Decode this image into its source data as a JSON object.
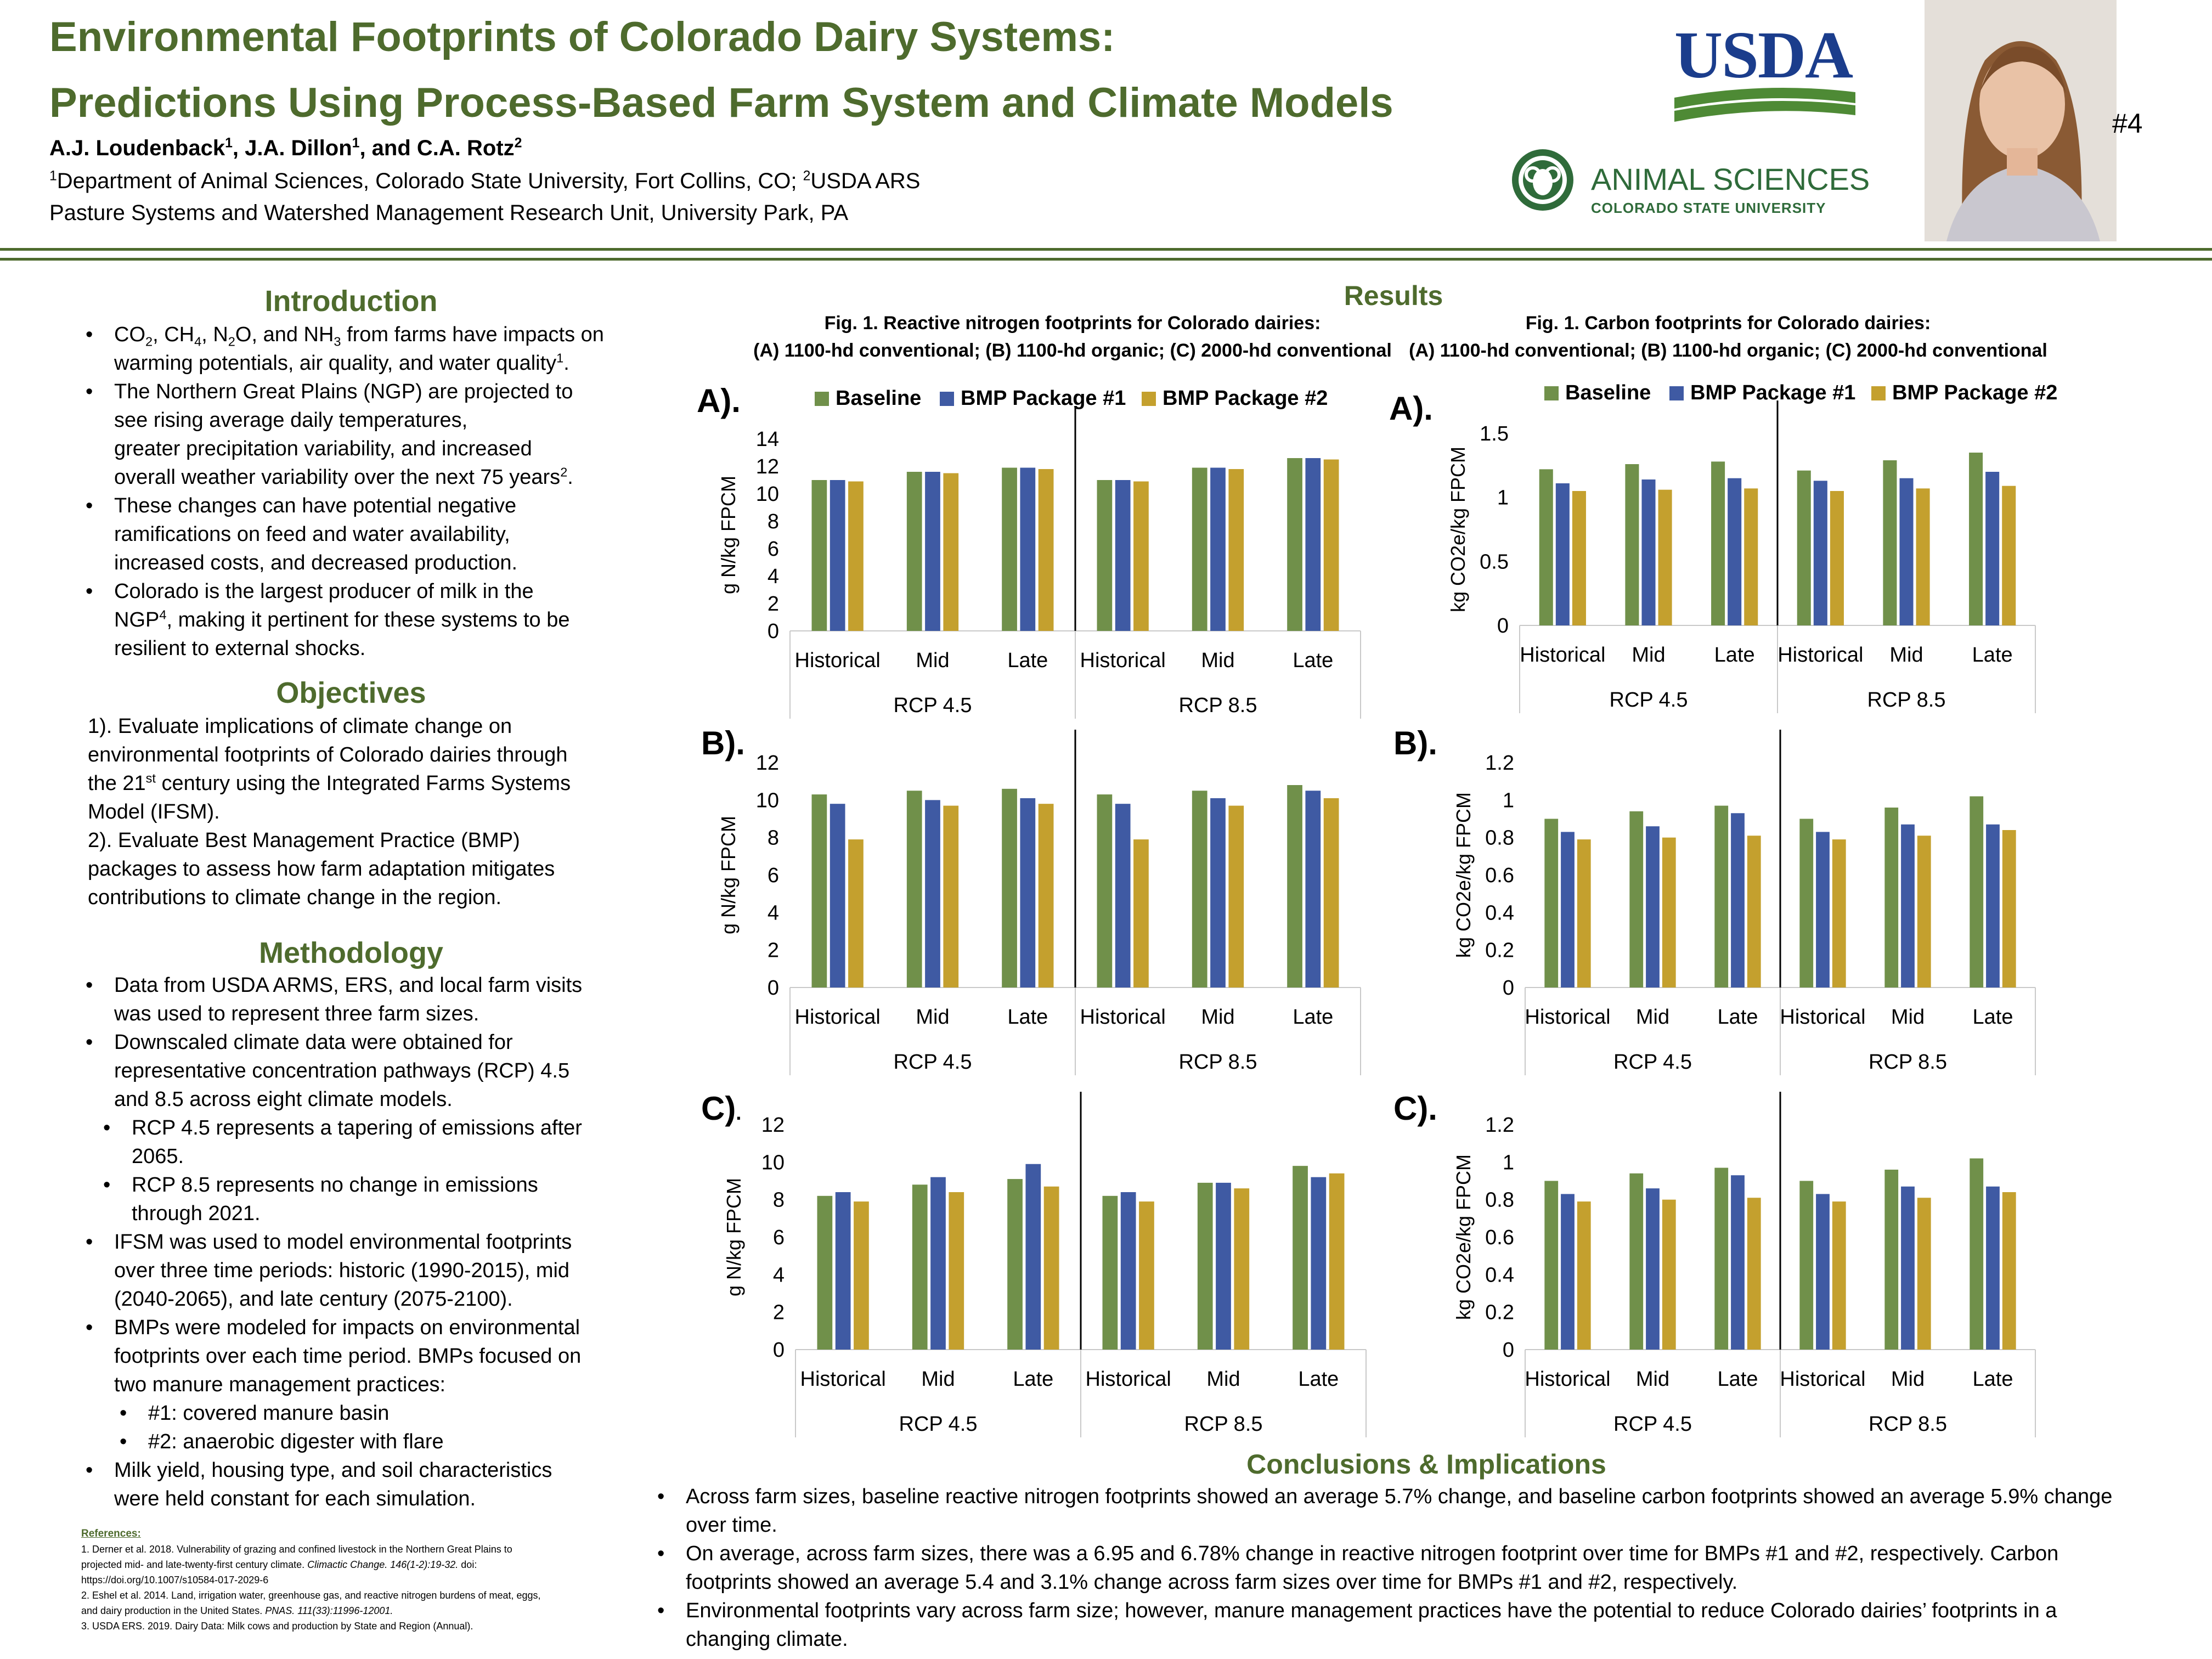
{
  "header": {
    "title_line1": "Environmental Footprints of Colorado Dairy Systems:",
    "title_line2": "Predictions Using Process-Based Farm System and Climate Models",
    "authors": {
      "a1": "A.J. Loudenback",
      "s1": "1",
      "a2": ", J.A. Dillon",
      "s2": "1",
      "a3": ", and C.A. Rotz",
      "s3": "2"
    },
    "affil1": {
      "s1": "1",
      "t1": "Department of Animal Sciences, Colorado State University, Fort Collins, CO; ",
      "s2": "2",
      "t2": "USDA ARS"
    },
    "affil2": "Pasture Systems and Watershed Management Research Unit, University Park, PA",
    "poster_number": "#4",
    "usda_logo_text": "USDA",
    "csu_line1": "ANIMAL SCIENCES",
    "csu_line2": "COLORADO STATE UNIVERSITY"
  },
  "intro": {
    "heading": "Introduction",
    "b1": {
      "a": "CO",
      "s1": "2",
      "b": ", CH",
      "s2": "4",
      "c": ", N",
      "s3": "2",
      "d": "O, and NH",
      "s4": "3",
      "e": " from farms have impacts on",
      "f": "warming potentials, air quality, and water quality",
      "s5": "1",
      "g": "."
    },
    "b2": {
      "l1": "The Northern Great Plains (NGP) are projected to",
      "l2": "see rising average daily temperatures,",
      "l3": "greater precipitation variability, and increased",
      "l4": "overall weather variability over the next 75 years",
      "s": "2",
      "e": "."
    },
    "b3": {
      "l1": "These changes can have potential negative",
      "l2": "ramifications on feed and water availability,",
      "l3": "increased costs, and decreased production."
    },
    "b4": {
      "l1": "Colorado is the largest producer of milk in the",
      "l2a": "NGP",
      "s": "4",
      "l2b": ", making it pertinent for these systems to be",
      "l3": "resilient to external shocks."
    }
  },
  "objectives": {
    "heading": "Objectives",
    "o1": {
      "l1": "1). Evaluate implications of climate change on",
      "l2": "environmental footprints of Colorado dairies through",
      "l3a": "the 21",
      "s": "st",
      "l3b": " century using the Integrated Farms Systems",
      "l4": "Model (IFSM)."
    },
    "o2": {
      "l1": "2). Evaluate Best Management Practice (BMP)",
      "l2": "packages to assess how farm adaptation mitigates",
      "l3": "contributions to climate change in the region."
    }
  },
  "methodology": {
    "heading": "Methodology",
    "m1": {
      "l1": "Data from USDA ARMS, ERS, and local farm visits",
      "l2": "was used to represent three farm sizes."
    },
    "m2": {
      "l1": "Downscaled climate data were obtained for",
      "l2": "representative concentration pathways (RCP) 4.5",
      "l3": "and 8.5 across eight climate models."
    },
    "m2a": {
      "l1": "RCP 4.5 represents a tapering of emissions after",
      "l2": "2065."
    },
    "m2b": {
      "l1": "RCP 8.5 represents no change in emissions",
      "l2": "through 2021."
    },
    "m3": {
      "l1": "IFSM was used to model environmental footprints",
      "l2": "over three time periods: historic (1990-2015), mid",
      "l3": "(2040-2065), and late century (2075-2100)."
    },
    "m4": {
      "l1": "BMPs were modeled for impacts on environmental",
      "l2": "footprints over each time period. BMPs focused on",
      "l3": "two manure management practices:"
    },
    "m4a": "#1: covered manure basin",
    "m4b": "#2: anaerobic digester with flare",
    "m5": {
      "l1": "Milk yield, housing type, and soil characteristics",
      "l2": "were held constant for each simulation."
    }
  },
  "references": {
    "heading": "References:",
    "r1a": "1. Derner et al. 2018. Vulnerability of grazing and confined livestock in the Northern Great Plains to",
    "r1b": "projected mid- and late-twenty-first century climate. ",
    "r1c": "Climactic Change. 146(1-2):19-32.",
    "r1d": " doi:",
    "r1e": "https://doi.org/10.1007/s10584-017-2029-6",
    "r2a": "2. Eshel et al. 2014. Land, irrigation water, greenhouse gas, and reactive nitrogen burdens of meat, eggs,",
    "r2b": "and dairy production in the United States. ",
    "r2c": "PNAS. 111(33):11996-12001.",
    "r3": "3.  USDA ERS. 2019. Dairy Data: Milk cows and production by State and Region (Annual)."
  },
  "results": {
    "heading": "Results",
    "fig_left_l1": "Fig. 1. Reactive nitrogen footprints for Colorado dairies:",
    "fig_left_l2": "(A) 1100-hd conventional; (B) 1100-hd organic; (C) 2000-hd conventional",
    "fig_right_l1": "Fig. 1. Carbon footprints for Colorado dairies:",
    "fig_right_l2": "(A) 1100-hd conventional; (B) 1100-hd organic; (C) 2000-hd conventional",
    "labels": {
      "a": "A).",
      "b": "B).",
      "c": "C)",
      "c_dot": ".",
      "ra": "A).",
      "rb": "B).",
      "rc": "C)."
    }
  },
  "legend": {
    "baseline": "Baseline",
    "bmp1": "BMP Package #1",
    "bmp2": "BMP Package #2"
  },
  "colors": {
    "baseline": "#70904a",
    "bmp1": "#3f5aa3",
    "bmp2": "#c4a02e",
    "accent": "#4e6b2d"
  },
  "chart_data": [
    {
      "id": "n_a",
      "type": "bar",
      "ylabel": "g N/kg FPCM",
      "ylim": [
        0,
        14
      ],
      "yticks": [
        0,
        2,
        4,
        6,
        8,
        10,
        12,
        14
      ],
      "categories": [
        "Historical",
        "Mid",
        "Late",
        "Historical",
        "Mid",
        "Late"
      ],
      "groups": [
        "RCP 4.5",
        "RCP 8.5"
      ],
      "series": [
        {
          "name": "Baseline",
          "values": [
            11.0,
            11.6,
            11.9,
            11.0,
            11.9,
            12.6
          ]
        },
        {
          "name": "BMP Package #1",
          "values": [
            11.0,
            11.6,
            11.9,
            11.0,
            11.9,
            12.6
          ]
        },
        {
          "name": "BMP Package #2",
          "values": [
            10.9,
            11.5,
            11.8,
            10.9,
            11.8,
            12.5
          ]
        }
      ],
      "legend": "top"
    },
    {
      "id": "n_b",
      "type": "bar",
      "ylabel": "g N/kg FPCM",
      "ylim": [
        0,
        12
      ],
      "yticks": [
        0,
        2,
        4,
        6,
        8,
        10,
        12
      ],
      "categories": [
        "Historical",
        "Mid",
        "Late",
        "Historical",
        "Mid",
        "Late"
      ],
      "groups": [
        "RCP 4.5",
        "RCP 8.5"
      ],
      "series": [
        {
          "name": "Baseline",
          "values": [
            10.3,
            10.5,
            10.6,
            10.3,
            10.5,
            10.8
          ]
        },
        {
          "name": "BMP Package #1",
          "values": [
            9.8,
            10.0,
            10.1,
            9.8,
            10.1,
            10.5
          ]
        },
        {
          "name": "BMP Package #2",
          "values": [
            7.9,
            9.7,
            9.8,
            7.9,
            9.7,
            10.1
          ]
        }
      ]
    },
    {
      "id": "n_c",
      "type": "bar",
      "ylabel": "g N/kg FPCM",
      "ylim": [
        0,
        12
      ],
      "yticks": [
        0,
        2,
        4,
        6,
        8,
        10,
        12
      ],
      "categories": [
        "Historical",
        "Mid",
        "Late",
        "Historical",
        "Mid",
        "Late"
      ],
      "groups": [
        "RCP 4.5",
        "RCP 8.5"
      ],
      "series": [
        {
          "name": "Baseline",
          "values": [
            8.2,
            8.8,
            9.1,
            8.2,
            8.9,
            9.8
          ]
        },
        {
          "name": "BMP Package #1",
          "values": [
            8.4,
            9.2,
            9.9,
            8.4,
            8.9,
            9.2
          ]
        },
        {
          "name": "BMP Package #2",
          "values": [
            7.9,
            8.4,
            8.7,
            7.9,
            8.6,
            9.4
          ]
        }
      ]
    },
    {
      "id": "c_a",
      "type": "bar",
      "ylabel": "kg CO2e/kg FPCM",
      "ylim": [
        0,
        1.5
      ],
      "yticks": [
        0,
        0.5,
        1,
        1.5
      ],
      "categories": [
        "Historical",
        "Mid",
        "Late",
        "Historical",
        "Mid",
        "Late"
      ],
      "groups": [
        "RCP 4.5",
        "RCP 8.5"
      ],
      "series": [
        {
          "name": "Baseline",
          "values": [
            1.22,
            1.26,
            1.28,
            1.21,
            1.29,
            1.35
          ]
        },
        {
          "name": "BMP Package #1",
          "values": [
            1.11,
            1.14,
            1.15,
            1.13,
            1.15,
            1.2
          ]
        },
        {
          "name": "BMP Package #2",
          "values": [
            1.05,
            1.06,
            1.07,
            1.05,
            1.07,
            1.09
          ]
        }
      ],
      "legend": "top"
    },
    {
      "id": "c_b",
      "type": "bar",
      "ylabel": "kg CO2e/kg FPCM",
      "ylim": [
        0,
        1.2
      ],
      "yticks": [
        0,
        0.2,
        0.4,
        0.6,
        0.8,
        1,
        1.2
      ],
      "categories": [
        "Historical",
        "Mid",
        "Late",
        "Historical",
        "Mid",
        "Late"
      ],
      "groups": [
        "RCP 4.5",
        "RCP 8.5"
      ],
      "series": [
        {
          "name": "Baseline",
          "values": [
            0.9,
            0.94,
            0.97,
            0.9,
            0.96,
            1.02
          ]
        },
        {
          "name": "BMP Package #1",
          "values": [
            0.83,
            0.86,
            0.93,
            0.83,
            0.87,
            0.87
          ]
        },
        {
          "name": "BMP Package #2",
          "values": [
            0.79,
            0.8,
            0.81,
            0.79,
            0.81,
            0.84
          ]
        }
      ]
    },
    {
      "id": "c_c",
      "type": "bar",
      "ylabel": "kg CO2e/kg FPCM",
      "ylim": [
        0,
        1.2
      ],
      "yticks": [
        0,
        0.2,
        0.4,
        0.6,
        0.8,
        1,
        1.2
      ],
      "categories": [
        "Historical",
        "Mid",
        "Late",
        "Historical",
        "Mid",
        "Late"
      ],
      "groups": [
        "RCP 4.5",
        "RCP 8.5"
      ],
      "series": [
        {
          "name": "Baseline",
          "values": [
            0.9,
            0.94,
            0.97,
            0.9,
            0.96,
            1.02
          ]
        },
        {
          "name": "BMP Package #1",
          "values": [
            0.83,
            0.86,
            0.93,
            0.83,
            0.87,
            0.87
          ]
        },
        {
          "name": "BMP Package #2",
          "values": [
            0.79,
            0.8,
            0.81,
            0.79,
            0.81,
            0.84
          ]
        }
      ]
    }
  ],
  "conclusions": {
    "heading": "Conclusions & Implications",
    "c1": {
      "l1": "Across farm sizes, baseline reactive nitrogen footprints showed an average 5.7% change, and baseline carbon footprints showed an average 5.9% change",
      "l2": "over time."
    },
    "c2": {
      "l1": "On average, across farm sizes, there was a 6.95 and 6.78% change in reactive nitrogen footprint over time for BMPs #1 and #2, respectively. Carbon",
      "l2": "footprints showed an average 5.4 and 3.1% change across farm sizes over time for BMPs #1 and #2, respectively."
    },
    "c3": {
      "l1": "Environmental footprints vary across farm size; however, manure management practices have the potential to reduce Colorado dairies’ footprints in a",
      "l2": "changing climate."
    }
  }
}
